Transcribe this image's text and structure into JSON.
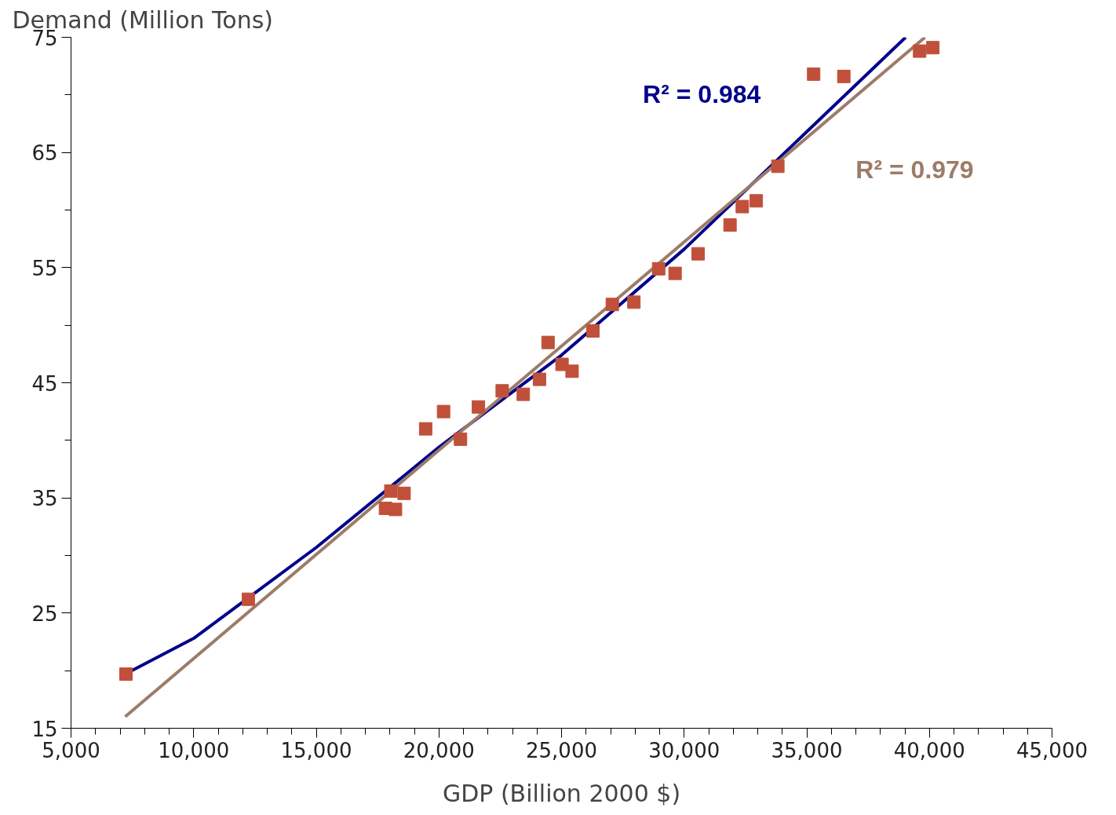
{
  "chart_data": {
    "type": "scatter",
    "xlabel": "GDP (Billion 2000 $)",
    "ylabel": "Demand (Million Tons)",
    "xlim": [
      5000,
      45000
    ],
    "ylim": [
      15,
      75
    ],
    "xticks": [
      {
        "value": 5000,
        "label": "5,000"
      },
      {
        "value": 10000,
        "label": "10,000"
      },
      {
        "value": 15000,
        "label": "15,000"
      },
      {
        "value": 20000,
        "label": "20,000"
      },
      {
        "value": 25000,
        "label": "25,000"
      },
      {
        "value": 30000,
        "label": "30,000"
      },
      {
        "value": 35000,
        "label": "35,000"
      },
      {
        "value": 40000,
        "label": "40,000"
      },
      {
        "value": 45000,
        "label": "45,000"
      },
      {
        "value": 6000,
        "label": null
      },
      {
        "value": 7000,
        "label": null
      },
      {
        "value": 8000,
        "label": null
      },
      {
        "value": 9000,
        "label": null
      },
      {
        "value": 11000,
        "label": null
      },
      {
        "value": 12000,
        "label": null
      },
      {
        "value": 13000,
        "label": null
      },
      {
        "value": 14000,
        "label": null
      },
      {
        "value": 16000,
        "label": null
      },
      {
        "value": 17000,
        "label": null
      },
      {
        "value": 18000,
        "label": null
      },
      {
        "value": 19000,
        "label": null
      },
      {
        "value": 21000,
        "label": null
      },
      {
        "value": 22000,
        "label": null
      },
      {
        "value": 23000,
        "label": null
      },
      {
        "value": 24000,
        "label": null
      },
      {
        "value": 26000,
        "label": null
      },
      {
        "value": 27000,
        "label": null
      },
      {
        "value": 28000,
        "label": null
      },
      {
        "value": 29000,
        "label": null
      },
      {
        "value": 31000,
        "label": null
      },
      {
        "value": 32000,
        "label": null
      },
      {
        "value": 33000,
        "label": null
      },
      {
        "value": 34000,
        "label": null
      },
      {
        "value": 36000,
        "label": null
      },
      {
        "value": 37000,
        "label": null
      },
      {
        "value": 38000,
        "label": null
      },
      {
        "value": 39000,
        "label": null
      },
      {
        "value": 41000,
        "label": null
      },
      {
        "value": 42000,
        "label": null
      },
      {
        "value": 43000,
        "label": null
      },
      {
        "value": 44000,
        "label": null
      }
    ],
    "yticks": [
      15,
      25,
      35,
      45,
      55,
      65,
      75,
      {
        "value": 20,
        "label": null
      },
      {
        "value": 30,
        "label": null
      },
      {
        "value": 40,
        "label": null
      },
      {
        "value": 50,
        "label": null
      },
      {
        "value": 60,
        "label": null
      },
      {
        "value": 70,
        "label": null
      }
    ],
    "grid": false,
    "series": [
      {
        "marker": "square",
        "color": "#c0503a",
        "x": [
          7240,
          12230,
          17820,
          18040,
          18230,
          18580,
          19460,
          20190,
          20880,
          21610,
          22580,
          23440,
          24100,
          24450,
          25020,
          25430,
          26280,
          27070,
          27950,
          28960,
          29630,
          30570,
          31870,
          32370,
          32940,
          33820,
          35280,
          36510,
          39600,
          40140
        ],
        "values": [
          19.7,
          26.2,
          34.1,
          35.6,
          34.0,
          35.4,
          41.0,
          42.5,
          40.1,
          42.9,
          44.3,
          44.0,
          45.3,
          48.5,
          46.6,
          46.0,
          49.5,
          51.8,
          52.0,
          54.9,
          54.5,
          56.2,
          58.7,
          60.3,
          60.8,
          63.8,
          71.8,
          71.6,
          73.8,
          74.1
        ]
      },
      {
        "type": "line",
        "line_style": "solid",
        "marker": "none",
        "color": "#00008b",
        "x": [
          7210,
          10000,
          15000,
          20000,
          25000,
          30000,
          35000,
          39030
        ],
        "values": [
          19.7,
          22.8,
          30.7,
          39.4,
          47.4,
          56.6,
          66.8,
          75
        ]
      },
      {
        "type": "line",
        "line_style": "solid",
        "marker": "none",
        "color": "#9c7c68",
        "x": [
          7210,
          39820
        ],
        "values": [
          16.0,
          75
        ]
      }
    ],
    "annotations": [
      "R² = 0.984",
      "R² = 0.979"
    ]
  }
}
